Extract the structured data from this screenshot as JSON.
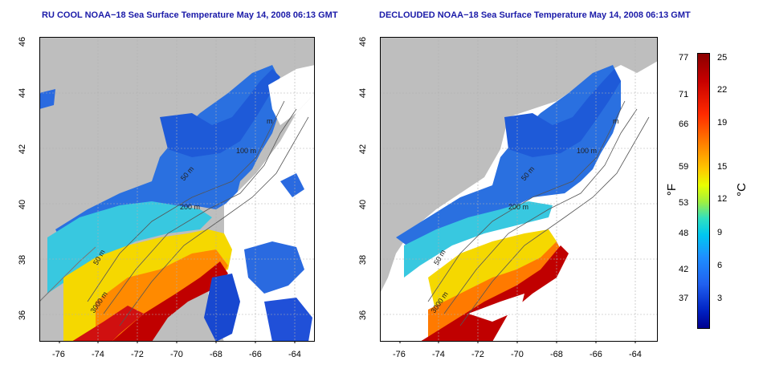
{
  "panels": [
    {
      "title": "RU COOL NOAA−18 Sea Surface Temperature May 14, 2008 06:13 GMT",
      "x_ticks": [
        "-76",
        "-74",
        "-72",
        "-70",
        "-68",
        "-66",
        "-64"
      ],
      "y_ticks": [
        "46",
        "44",
        "42",
        "40",
        "38",
        "36"
      ],
      "contour_labels": [
        "50 m",
        "100 m",
        "200 m",
        "50 m",
        "3000 m",
        "m"
      ]
    },
    {
      "title": "DECLOUDED NOAA−18 Sea Surface Temperature May 14, 2008 06:13 GMT",
      "x_ticks": [
        "-76",
        "-74",
        "-72",
        "-70",
        "-68",
        "-66",
        "-64"
      ],
      "y_ticks": [
        "46",
        "44",
        "42",
        "40",
        "38",
        "36"
      ],
      "contour_labels": [
        "50 m",
        "100 m",
        "200 m",
        "50 m",
        "3000 m",
        "m"
      ]
    }
  ],
  "colorbar": {
    "fahrenheit_ticks": [
      "77",
      "71",
      "66",
      "59",
      "53",
      "48",
      "42",
      "37"
    ],
    "celsius_ticks": [
      "25",
      "22",
      "19",
      "15",
      "12",
      "9",
      "6",
      "3"
    ],
    "fahrenheit_label": "°F",
    "celsius_label": "°C"
  },
  "colors": {
    "land": "#bebebe",
    "title": "#1a1aa8",
    "cloud": "#ffffff",
    "grid": "#b0b0b0"
  }
}
